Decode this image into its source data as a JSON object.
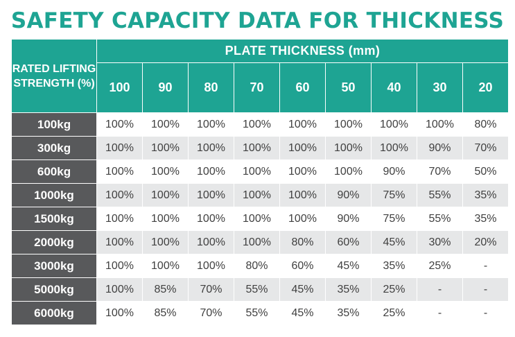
{
  "title": "SAFETY CAPACITY DATA FOR THICKNESS",
  "table": {
    "corner_header": "RATED LIFTING STRENGTH (%)",
    "group_header": "PLATE THICKNESS (mm)",
    "thickness_columns": [
      "100",
      "90",
      "80",
      "70",
      "60",
      "50",
      "40",
      "30",
      "20"
    ],
    "rows": [
      {
        "load": "100kg",
        "values": [
          "100%",
          "100%",
          "100%",
          "100%",
          "100%",
          "100%",
          "100%",
          "100%",
          "80%"
        ]
      },
      {
        "load": "300kg",
        "values": [
          "100%",
          "100%",
          "100%",
          "100%",
          "100%",
          "100%",
          "100%",
          "90%",
          "70%"
        ]
      },
      {
        "load": "600kg",
        "values": [
          "100%",
          "100%",
          "100%",
          "100%",
          "100%",
          "100%",
          "90%",
          "70%",
          "50%"
        ]
      },
      {
        "load": "1000kg",
        "values": [
          "100%",
          "100%",
          "100%",
          "100%",
          "100%",
          "90%",
          "75%",
          "55%",
          "35%"
        ]
      },
      {
        "load": "1500kg",
        "values": [
          "100%",
          "100%",
          "100%",
          "100%",
          "100%",
          "90%",
          "75%",
          "55%",
          "35%"
        ]
      },
      {
        "load": "2000kg",
        "values": [
          "100%",
          "100%",
          "100%",
          "100%",
          "80%",
          "60%",
          "45%",
          "30%",
          "20%"
        ]
      },
      {
        "load": "3000kg",
        "values": [
          "100%",
          "100%",
          "100%",
          "80%",
          "60%",
          "45%",
          "35%",
          "25%",
          "-"
        ]
      },
      {
        "load": "5000kg",
        "values": [
          "100%",
          "85%",
          "70%",
          "55%",
          "45%",
          "35%",
          "25%",
          "-",
          "-"
        ]
      },
      {
        "load": "6000kg",
        "values": [
          "100%",
          "85%",
          "70%",
          "55%",
          "45%",
          "35%",
          "25%",
          "-",
          "-"
        ]
      }
    ]
  },
  "colors": {
    "header_teal": "#1ea493",
    "row_header_gray": "#58595b",
    "stripe_gray": "#e6e7e8",
    "cell_text": "#404040"
  }
}
